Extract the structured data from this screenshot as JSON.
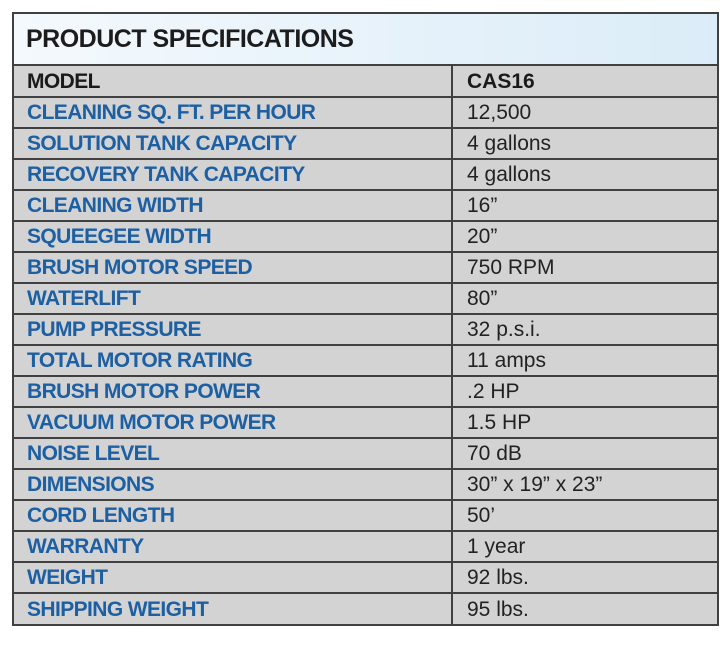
{
  "title": "PRODUCT SPECIFICATIONS",
  "header": {
    "label": "MODEL",
    "value": "CAS16"
  },
  "rows": [
    {
      "label": "CLEANING SQ. FT. PER HOUR",
      "value": "12,500"
    },
    {
      "label": "SOLUTION TANK CAPACITY",
      "value": "4 gallons"
    },
    {
      "label": "RECOVERY TANK CAPACITY",
      "value": "4 gallons"
    },
    {
      "label": "CLEANING WIDTH",
      "value": "16”"
    },
    {
      "label": "SQUEEGEE WIDTH",
      "value": "20”"
    },
    {
      "label": "BRUSH MOTOR SPEED",
      "value": "750 RPM"
    },
    {
      "label": "WATERLIFT",
      "value": "80”"
    },
    {
      "label": "PUMP PRESSURE",
      "value": "32 p.s.i."
    },
    {
      "label": "TOTAL MOTOR RATING",
      "value": "11 amps"
    },
    {
      "label": "BRUSH MOTOR POWER",
      "value": ".2 HP"
    },
    {
      "label": "VACUUM MOTOR POWER",
      "value": "1.5 HP"
    },
    {
      "label": "NOISE LEVEL",
      "value": "70 dB"
    },
    {
      "label": "DIMENSIONS",
      "value": "30” x 19” x 23”"
    },
    {
      "label": "CORD LENGTH",
      "value": "50’"
    },
    {
      "label": "WARRANTY",
      "value": "1 year"
    },
    {
      "label": "WEIGHT",
      "value": "92 lbs."
    },
    {
      "label": "SHIPPING WEIGHT",
      "value": "95 lbs."
    }
  ]
}
